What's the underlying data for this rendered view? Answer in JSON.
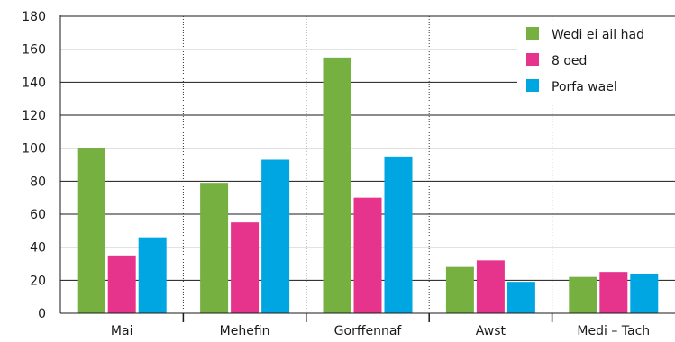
{
  "chart_data": {
    "type": "bar",
    "categories": [
      "Mai",
      "Mehefin",
      "Gorffennaf",
      "Awst",
      "Medi – Tach"
    ],
    "series": [
      {
        "name": "Wedi ei ail had",
        "color": "#76b041",
        "values": [
          100,
          79,
          155,
          28,
          22
        ]
      },
      {
        "name": "8 oed",
        "color": "#e6338c",
        "values": [
          35,
          55,
          70,
          32,
          25
        ]
      },
      {
        "name": "Porfa wael",
        "color": "#00a6e2",
        "values": [
          46,
          93,
          95,
          19,
          24
        ]
      }
    ],
    "title": "",
    "xlabel": "",
    "ylabel": "",
    "ylim": [
      0,
      180
    ],
    "yticks": [
      0,
      20,
      40,
      60,
      80,
      100,
      120,
      140,
      160,
      180
    ],
    "grid": true,
    "legend_position": "top-right"
  }
}
